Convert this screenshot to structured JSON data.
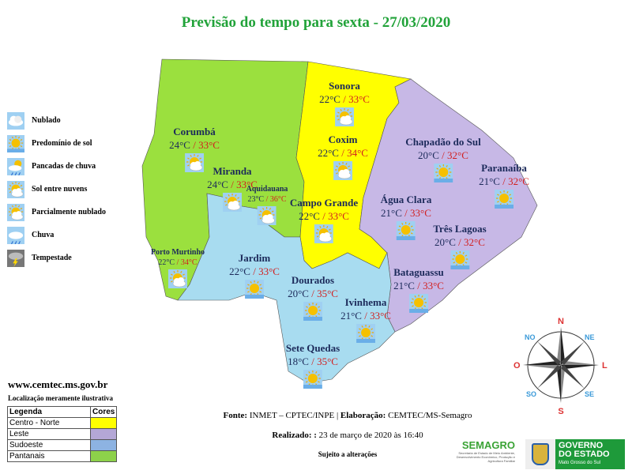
{
  "title": "Previsão do tempo para sexta - 27/03/2020",
  "weather_legend": [
    {
      "icon": "cloudy-icon",
      "label": "Nublado"
    },
    {
      "icon": "sunny-icon",
      "label": "Predomínio de sol"
    },
    {
      "icon": "showers-icon",
      "label": "Pancadas de chuva"
    },
    {
      "icon": "sun-between-clouds-icon",
      "label": "Sol entre nuvens"
    },
    {
      "icon": "partly-cloudy-icon",
      "label": "Parcialmente nublado"
    },
    {
      "icon": "rain-icon",
      "label": "Chuva"
    },
    {
      "icon": "storm-icon",
      "label": "Tempestade"
    }
  ],
  "cities": [
    {
      "name": "Sonora",
      "min": "22°C",
      "max": "33°C",
      "icon": "sun-between-clouds-icon"
    },
    {
      "name": "Corumbá",
      "min": "24°C",
      "max": "33°C",
      "icon": "sun-between-clouds-icon"
    },
    {
      "name": "Coxim",
      "min": "22°C",
      "max": "34°C",
      "icon": "sun-between-clouds-icon"
    },
    {
      "name": "Miranda",
      "min": "24°C",
      "max": "33°C",
      "icon": "sun-between-clouds-icon"
    },
    {
      "name": "Aquidauana",
      "min": "23°C",
      "max": "36°C",
      "icon": "sun-between-clouds-icon"
    },
    {
      "name": "Campo Grande",
      "min": "22°C",
      "max": "33°C",
      "icon": "sun-between-clouds-icon"
    },
    {
      "name": "Porto Murtinho",
      "min": "22°C",
      "max": "34°C",
      "icon": "sun-between-clouds-icon"
    },
    {
      "name": "Jardim",
      "min": "22°C",
      "max": "33°C",
      "icon": "sunny-icon"
    },
    {
      "name": "Dourados",
      "min": "20°C",
      "max": "35°C",
      "icon": "sunny-icon"
    },
    {
      "name": "Ivinhema",
      "min": "21°C",
      "max": "33°C",
      "icon": "sunny-icon"
    },
    {
      "name": "Sete Quedas",
      "min": "18°C",
      "max": "35°C",
      "icon": "sunny-icon"
    },
    {
      "name": "Chapadão do Sul",
      "min": "20°C",
      "max": "32°C",
      "icon": "sunny-icon"
    },
    {
      "name": "Paranaíba",
      "min": "21°C",
      "max": "32°C",
      "icon": "sunny-icon"
    },
    {
      "name": "Água Clara",
      "min": "21°C",
      "max": "33°C",
      "icon": "sunny-icon"
    },
    {
      "name": "Três Lagoas",
      "min": "20°C",
      "max": "32°C",
      "icon": "sunny-icon"
    },
    {
      "name": "Bataguassu",
      "min": "21°C",
      "max": "33°C",
      "icon": "sunny-icon"
    }
  ],
  "sep": " / ",
  "website": "www.cemtec.ms.gov.br",
  "disclaimer": "Localização meramente ilustrativa",
  "region_legend": {
    "header": "Legenda",
    "colors_header": "Cores",
    "rows": [
      {
        "label": "Centro - Norte",
        "color": "#ffff00"
      },
      {
        "label": "Leste",
        "color": "#b4a7d6"
      },
      {
        "label": "Sudoeste",
        "color": "#8db3e2"
      },
      {
        "label": "Pantanais",
        "color": "#8dd14a"
      }
    ]
  },
  "compass": {
    "n": "N",
    "s": "S",
    "l": "L",
    "o": "O",
    "ne": "NE",
    "no": "NO",
    "se": "SE",
    "so": "SO"
  },
  "footer": {
    "fonte_label": "Fonte:",
    "fonte": " INMET – CPTEC/INPE | ",
    "elab_label": "Elaboração:",
    "elab": " CEMTEC/MS-Semagro",
    "realizado_label": "Realizado: :",
    "realizado": " 23 de março de 2020 às 16:40",
    "sujeito": "Sujeito a alterações"
  },
  "logos": {
    "semagro": "SEMAGRO",
    "semagro_sub": "Secretaria de Estado de Meio Ambiente, Desenvolvimento Econômico, Produção e Agricultura Familiar",
    "gov1": "GOVERNO",
    "gov2": "DO ESTADO",
    "gov3": "Mato Grosso do Sul"
  },
  "colors": {
    "title": "#22a33a",
    "min": "#1c2a5a",
    "max": "#d21f1f"
  }
}
